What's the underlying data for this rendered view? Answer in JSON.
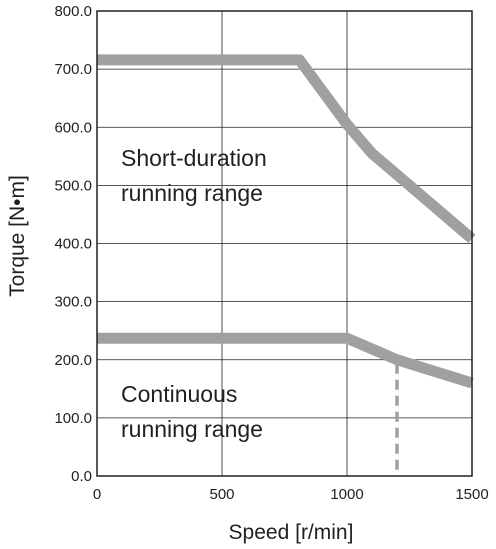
{
  "chart_data": {
    "type": "line",
    "xlabel": "Speed [r/min]",
    "ylabel": "Torque [N•m]",
    "xlim": [
      0,
      1500
    ],
    "ylim": [
      0,
      800
    ],
    "x_ticks": [
      "0",
      "500",
      "1000",
      "1500"
    ],
    "y_ticks": [
      "0.0",
      "100.0",
      "200.0",
      "300.0",
      "400.0",
      "500.0",
      "600.0",
      "700.0",
      "800.0"
    ],
    "grid": true,
    "line_color": "#a0a0a0",
    "series": [
      {
        "x": [
          0,
          810,
          1000,
          1100,
          1250,
          1500
        ],
        "y": [
          716,
          716,
          605,
          555,
          500,
          408
        ]
      },
      {
        "x": [
          0,
          1000,
          1200,
          1500
        ],
        "y": [
          237,
          237,
          200,
          160
        ]
      }
    ],
    "marker_line": {
      "x": 1200,
      "y": [
        0,
        200
      ],
      "style": "dashed"
    },
    "annotations": [
      {
        "lines": [
          "Short-duration",
          "running range"
        ]
      },
      {
        "lines": [
          "Continuous",
          "running range"
        ]
      }
    ]
  }
}
